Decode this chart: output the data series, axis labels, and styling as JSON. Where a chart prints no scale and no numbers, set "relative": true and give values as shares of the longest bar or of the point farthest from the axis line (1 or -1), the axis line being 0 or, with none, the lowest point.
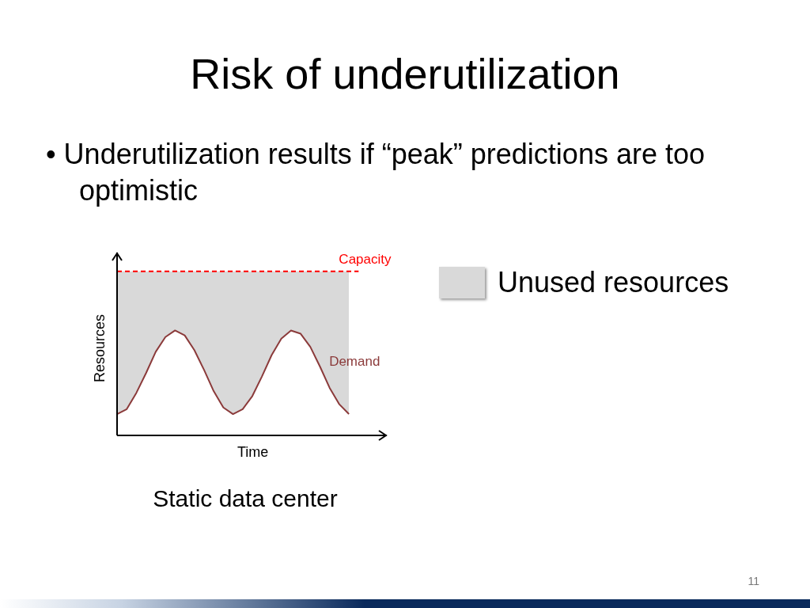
{
  "chart_data": {
    "type": "line",
    "title": "Risk of underutilization",
    "subtitle": "• Underutilization results if “peak” predictions are too optimistic",
    "xlabel": "Time",
    "ylabel": "Resources",
    "relative": true,
    "legend": "right",
    "categories": [
      null,
      null,
      null,
      null,
      null,
      null,
      null,
      null,
      null,
      null,
      null,
      null,
      null,
      null,
      null,
      null,
      null,
      null,
      null,
      null,
      null,
      null,
      null,
      null,
      null,
      null,
      null,
      null,
      null
    ],
    "series": [
      {
        "name": "Unused resources",
        "type": "area",
        "color": "#d9d9d9",
        "values": [
          1,
          1,
          1,
          1,
          1,
          1,
          1,
          1,
          1,
          1,
          1,
          1,
          1,
          1,
          1,
          1,
          1,
          1,
          1,
          1,
          1,
          1,
          1,
          1,
          1,
          null,
          null,
          null,
          null
        ]
      },
      {
        "name": "Capacity",
        "type": "line",
        "color": "#ff0000",
        "line_style": "dashed",
        "values": [
          1,
          1,
          1,
          1,
          1,
          1,
          1,
          1,
          1,
          1,
          1,
          1,
          1,
          1,
          1,
          1,
          1,
          1,
          1,
          1,
          1,
          1,
          1,
          1,
          1,
          1,
          null,
          null,
          null
        ]
      },
      {
        "name": "Demand",
        "type": "line",
        "color": "#8b3a3a",
        "line_style": "solid",
        "values": [
          0.13,
          0.16,
          0.26,
          0.38,
          0.51,
          0.6,
          0.64,
          0.61,
          0.52,
          0.4,
          0.27,
          0.17,
          0.13,
          0.16,
          0.24,
          0.36,
          0.49,
          0.59,
          0.64,
          0.62,
          0.54,
          0.42,
          0.29,
          0.19,
          0.13,
          null,
          null,
          null,
          null
        ]
      }
    ],
    "annotations": [
      "Static data center",
      "11"
    ]
  }
}
